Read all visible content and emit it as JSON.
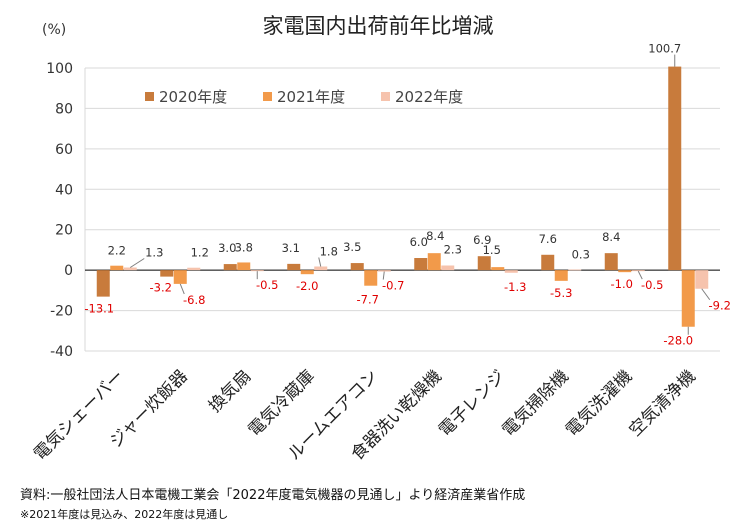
{
  "chart_data": {
    "type": "bar",
    "title": "家電国内出荷前年比増減",
    "unit_label": "(%)",
    "ylim": [
      -40,
      100
    ],
    "yticks": [
      -40,
      -20,
      0,
      20,
      40,
      60,
      80,
      100
    ],
    "grid": true,
    "legend_position": "top-left",
    "categories": [
      "電気シェーバー",
      "ジャー炊飯器",
      "換気扇",
      "電気冷蔵庫",
      "ルームエアコン",
      "食器洗い乾燥機",
      "電子レンジ",
      "電気掃除機",
      "電気洗濯機",
      "空気清浄機"
    ],
    "series": [
      {
        "name": "2020年度",
        "color": "#c87b3c",
        "values": [
          -13.1,
          -3.2,
          3.0,
          3.1,
          3.5,
          6.0,
          6.9,
          7.6,
          8.4,
          100.7
        ],
        "labels": [
          "-13.1",
          "-3.2",
          "3.0",
          "3.1",
          "3.5",
          "6.0",
          "6.9",
          "7.6",
          "8.4",
          "100.7"
        ]
      },
      {
        "name": "2021年度",
        "color": "#f29a4a",
        "values": [
          2.2,
          -6.8,
          3.8,
          -2.0,
          -7.7,
          8.4,
          1.5,
          -5.3,
          -1.0,
          -28.0
        ],
        "labels": [
          "2.2",
          "-6.8",
          "3.8",
          "-2.0",
          "-7.7",
          "8.4",
          "1.5",
          "-5.3",
          "-1.0",
          "-28.0"
        ]
      },
      {
        "name": "2022年度",
        "color": "#f6c3ad",
        "values": [
          1.3,
          1.2,
          -0.5,
          1.8,
          -0.7,
          2.3,
          -1.3,
          0.3,
          -0.5,
          -9.2
        ],
        "labels": [
          "1.3",
          "1.2",
          "-0.5",
          "1.8",
          "-0.7",
          "2.3",
          "-1.3",
          "0.3",
          "-0.5",
          "-9.2"
        ]
      }
    ],
    "colors": {
      "axis": "#000000",
      "grid": "#d9d9d9",
      "negative_label": "#e00000",
      "positive_label": "#333333",
      "leader": "#7f7f7f"
    }
  },
  "source": "資料:一般社団法人日本電機工業会「2022年度電気機器の見通し」より経済産業省作成",
  "note": "※2021年度は見込み、2022年度は見通し"
}
